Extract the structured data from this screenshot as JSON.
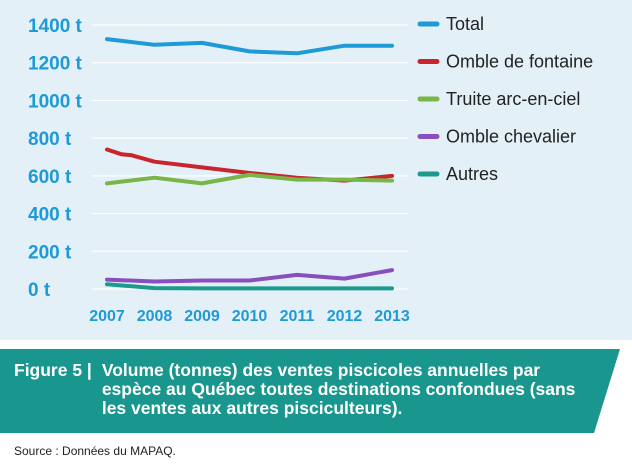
{
  "chart_data": {
    "type": "line",
    "x": [
      "2007",
      "2008",
      "2009",
      "2010",
      "2011",
      "2012",
      "2013"
    ],
    "y_tick_labels": [
      "0 t",
      "200 t",
      "400 t",
      "600 t",
      "800 t",
      "1000 t",
      "1200 t",
      "1400 t"
    ],
    "y_tick_values": [
      0,
      200,
      400,
      600,
      800,
      1000,
      1200,
      1400
    ],
    "ylim": [
      0,
      1400
    ],
    "grid": true,
    "legend_position": "right",
    "series": [
      {
        "name": "Total",
        "color": "#1e9ad6",
        "points": [
          [
            2007,
            1325
          ],
          [
            2008,
            1295
          ],
          [
            2009,
            1305
          ],
          [
            2010,
            1260
          ],
          [
            2011,
            1250
          ],
          [
            2012,
            1290
          ],
          [
            2013,
            1290
          ]
        ]
      },
      {
        "name": "Omble de fontaine",
        "color": "#c8262c",
        "points": [
          [
            2007,
            740
          ],
          [
            2007.3,
            715
          ],
          [
            2007.5,
            710
          ],
          [
            2008,
            675
          ],
          [
            2009,
            645
          ],
          [
            2010,
            615
          ],
          [
            2011,
            590
          ],
          [
            2012,
            575
          ],
          [
            2013,
            600
          ]
        ]
      },
      {
        "name": "Truite arc-en-ciel",
        "color": "#7ab547",
        "points": [
          [
            2007,
            560
          ],
          [
            2008,
            590
          ],
          [
            2009,
            560
          ],
          [
            2010,
            605
          ],
          [
            2011,
            580
          ],
          [
            2012,
            580
          ],
          [
            2013,
            575
          ]
        ]
      },
      {
        "name": "Omble chevalier",
        "color": "#8a4fbf",
        "points": [
          [
            2007,
            50
          ],
          [
            2008,
            40
          ],
          [
            2009,
            45
          ],
          [
            2010,
            45
          ],
          [
            2011,
            75
          ],
          [
            2012,
            55
          ],
          [
            2013,
            100
          ]
        ]
      },
      {
        "name": "Autres",
        "color": "#1a9b8e",
        "points": [
          [
            2007,
            25
          ],
          [
            2008,
            5
          ],
          [
            2009,
            3
          ],
          [
            2010,
            3
          ],
          [
            2011,
            3
          ],
          [
            2012,
            3
          ],
          [
            2013,
            3
          ]
        ]
      }
    ]
  },
  "caption": {
    "label": "Figure 5 |",
    "text": "Volume (tonnes) des ventes piscicoles annuelles par espèce au Québec toutes destinations confondues (sans les ventes aux autres pisciculteurs).",
    "band_color": "#19968d"
  },
  "source": "Source : Données du MAPAQ."
}
